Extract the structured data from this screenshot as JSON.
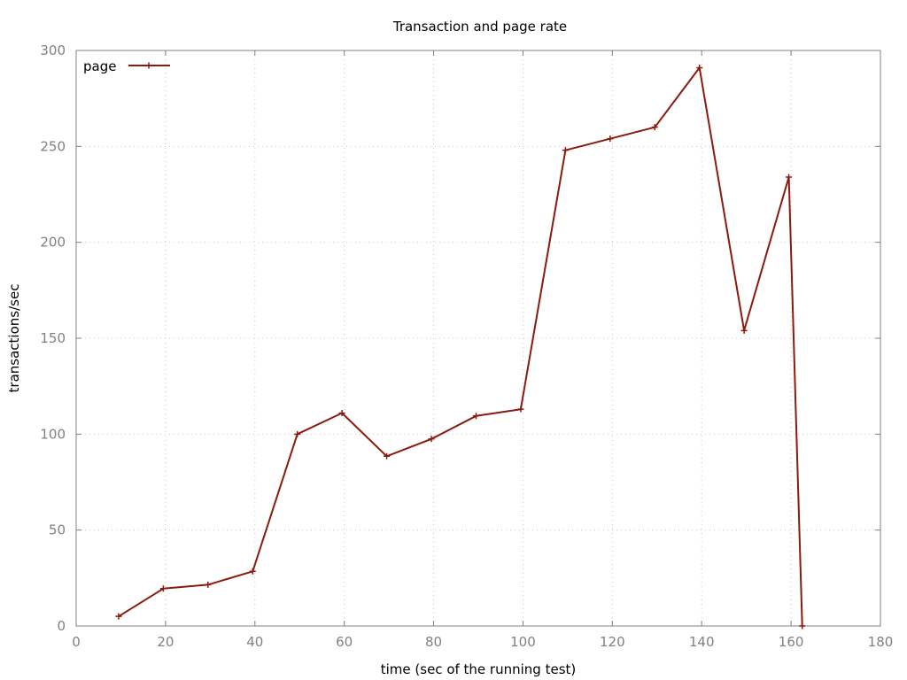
{
  "chart_data": {
    "type": "line",
    "title": "Transaction and page rate",
    "xlabel": "time (sec of the running test)",
    "ylabel": "transactions/sec",
    "xlim": [
      0,
      180
    ],
    "ylim": [
      0,
      300
    ],
    "x_ticks": [
      0,
      20,
      40,
      60,
      80,
      100,
      120,
      140,
      160,
      180
    ],
    "y_ticks": [
      0,
      50,
      100,
      150,
      200,
      250,
      300
    ],
    "x_tick_labels": [
      "0",
      "20",
      "40",
      "60",
      "80",
      "100",
      "120",
      "140",
      "160",
      "180"
    ],
    "y_tick_labels": [
      "0",
      "50",
      "100",
      "150",
      "200",
      "250",
      "300"
    ],
    "grid": true,
    "legend_position": "top-left",
    "series": [
      {
        "name": "page",
        "color": "#8b1a0e",
        "marker": "plus",
        "x": [
          9.5,
          19.5,
          29.5,
          39.5,
          49.5,
          59.5,
          69.5,
          79.5,
          89.5,
          99.5,
          109.5,
          119.5,
          129.5,
          139.5,
          149.5,
          159.5,
          162.5
        ],
        "y": [
          5,
          19.5,
          21.5,
          28.5,
          100,
          111,
          88.5,
          97.5,
          109.5,
          113,
          248,
          254,
          260,
          291,
          154,
          234,
          0
        ]
      }
    ]
  }
}
